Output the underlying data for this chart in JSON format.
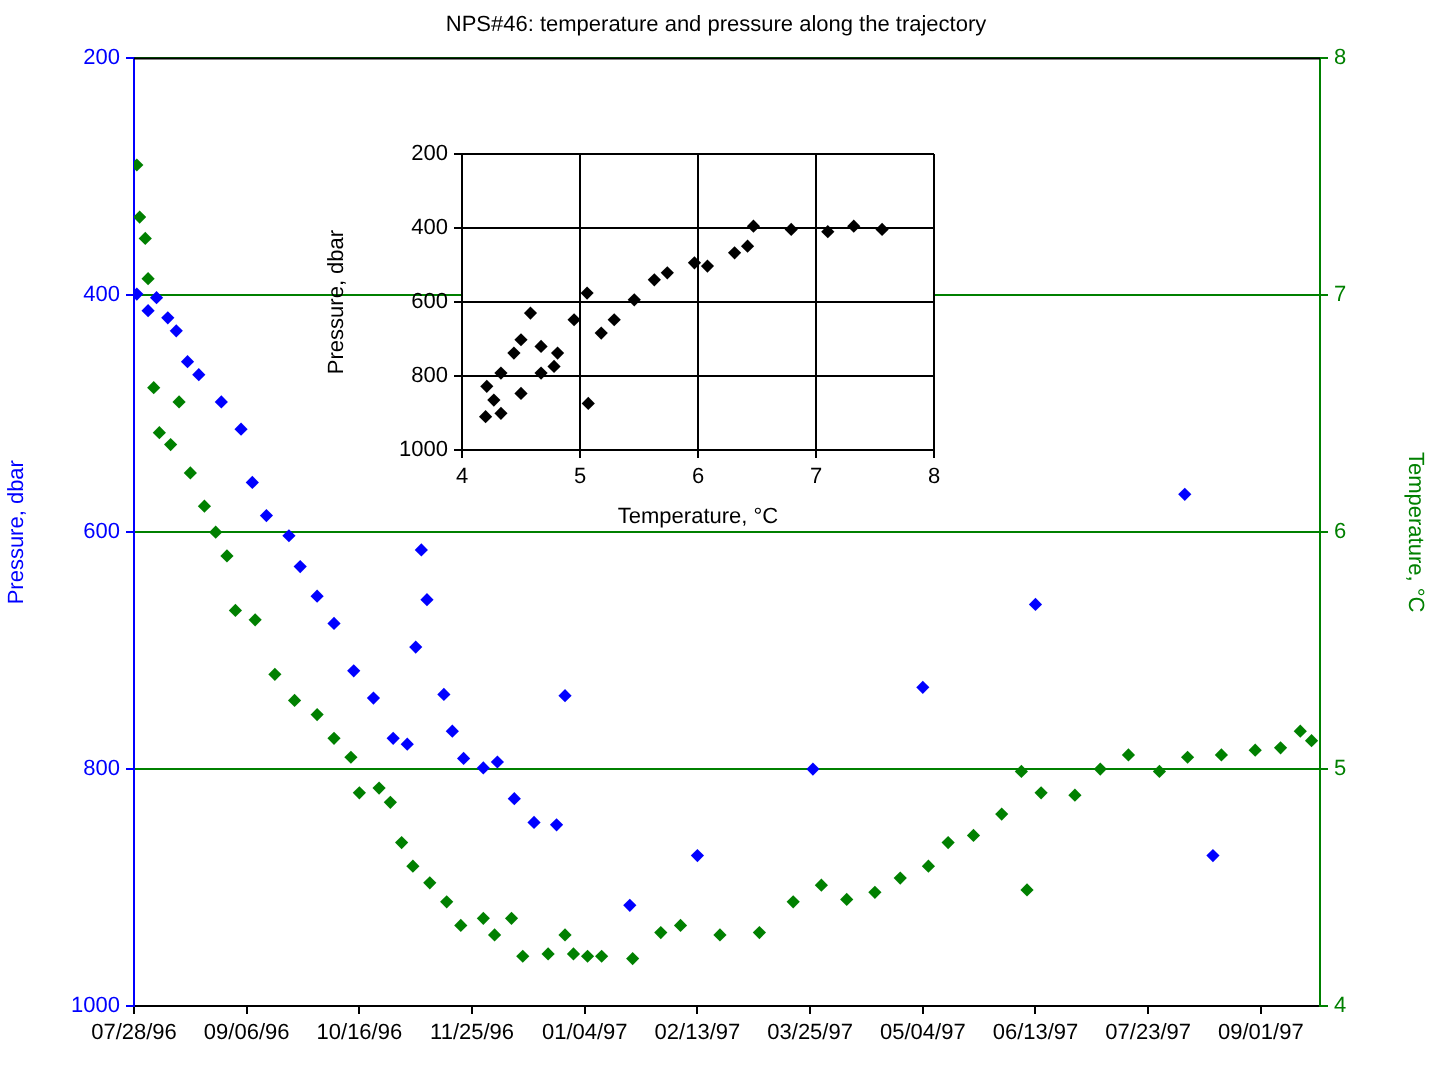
{
  "chart_data": [
    {
      "type": "scatter",
      "title": "NPS#46: temperature and pressure along the trajectory",
      "ylabel": "Pressure, dbar",
      "y2label": "Temperature, °C",
      "xlim": [
        "1996-07-28",
        "1997-09-22"
      ],
      "xticks": [
        {
          "value": "1996-07-28",
          "label": "07/28/96"
        },
        {
          "value": "1996-09-06",
          "label": "09/06/96"
        },
        {
          "value": "1996-10-16",
          "label": "10/16/96"
        },
        {
          "value": "1996-11-25",
          "label": "11/25/96"
        },
        {
          "value": "1997-01-04",
          "label": "01/04/97"
        },
        {
          "value": "1997-02-13",
          "label": "02/13/97"
        },
        {
          "value": "1997-03-25",
          "label": "03/25/97"
        },
        {
          "value": "1997-05-04",
          "label": "05/04/97"
        },
        {
          "value": "1997-06-13",
          "label": "06/13/97"
        },
        {
          "value": "1997-07-23",
          "label": "07/23/97"
        },
        {
          "value": "1997-09-01",
          "label": "09/01/97"
        }
      ],
      "ylim": [
        1000,
        200
      ],
      "yticks": [
        200,
        400,
        600,
        800,
        1000
      ],
      "y2lim": [
        4,
        8
      ],
      "y2ticks": [
        4,
        5,
        6,
        7,
        8
      ],
      "grid": "y",
      "legend": false,
      "marker": "diamond",
      "series": [
        {
          "color": "#0000ff",
          "axis": "y",
          "x": [
            "1996-07-29",
            "1996-08-02",
            "1996-08-05",
            "1996-08-09",
            "1996-08-12",
            "1996-08-16",
            "1996-08-20",
            "1996-08-28",
            "1996-09-04",
            "1996-09-08",
            "1996-09-13",
            "1996-09-21",
            "1996-09-25",
            "1996-10-01",
            "1996-10-07",
            "1996-10-14",
            "1996-10-21",
            "1996-10-28",
            "1996-11-02",
            "1996-11-05",
            "1996-11-07",
            "1996-11-09",
            "1996-11-15",
            "1996-11-18",
            "1996-11-22",
            "1996-11-29",
            "1996-12-04",
            "1996-12-10",
            "1996-12-17",
            "1996-12-25",
            "1996-12-28",
            "1997-01-20",
            "1997-02-13",
            "1997-03-26",
            "1997-05-04",
            "1997-06-13",
            "1997-08-05",
            "1997-08-15"
          ],
          "values": [
            399,
            413,
            402,
            419,
            430,
            456,
            467,
            490,
            513,
            558,
            586,
            603,
            629,
            654,
            677,
            717,
            740,
            774,
            779,
            697,
            615,
            657,
            737,
            768,
            791,
            799,
            794,
            825,
            845,
            847,
            738,
            915,
            873,
            800,
            731,
            661,
            568,
            873
          ]
        },
        {
          "color": "#008000",
          "axis": "y2",
          "x": [
            "1996-07-29",
            "1996-07-30",
            "1996-08-01",
            "1996-08-02",
            "1996-08-04",
            "1996-08-06",
            "1996-08-10",
            "1996-08-13",
            "1996-08-17",
            "1996-08-22",
            "1996-08-26",
            "1996-08-30",
            "1996-09-02",
            "1996-09-09",
            "1996-09-16",
            "1996-09-23",
            "1996-10-01",
            "1996-10-07",
            "1996-10-13",
            "1996-10-16",
            "1996-10-23",
            "1996-10-27",
            "1996-10-31",
            "1996-11-04",
            "1996-11-10",
            "1996-11-16",
            "1996-11-21",
            "1996-11-29",
            "1996-12-03",
            "1996-12-09",
            "1996-12-13",
            "1996-12-22",
            "1996-12-28",
            "1996-12-31",
            "1997-01-05",
            "1997-01-10",
            "1997-01-21",
            "1997-01-31",
            "1997-02-07",
            "1997-02-21",
            "1997-03-07",
            "1997-03-19",
            "1997-03-29",
            "1997-04-07",
            "1997-04-17",
            "1997-04-26",
            "1997-05-06",
            "1997-05-13",
            "1997-05-22",
            "1997-06-01",
            "1997-06-08",
            "1997-06-10",
            "1997-06-15",
            "1997-06-27",
            "1997-07-06",
            "1997-07-16",
            "1997-07-27",
            "1997-08-06",
            "1997-08-18",
            "1997-08-30",
            "1997-09-08",
            "1997-09-15",
            "1997-09-19"
          ],
          "values": [
            7.55,
            7.33,
            7.24,
            7.07,
            6.61,
            6.42,
            6.37,
            6.55,
            6.25,
            6.11,
            6.0,
            5.9,
            5.67,
            5.63,
            5.4,
            5.29,
            5.23,
            5.13,
            5.05,
            4.9,
            4.92,
            4.86,
            4.69,
            4.59,
            4.52,
            4.44,
            4.34,
            4.37,
            4.3,
            4.37,
            4.21,
            4.22,
            4.3,
            4.22,
            4.21,
            4.21,
            4.2,
            4.31,
            4.34,
            4.3,
            4.31,
            4.44,
            4.51,
            4.45,
            4.48,
            4.54,
            4.59,
            4.69,
            4.72,
            4.81,
            4.99,
            4.49,
            4.9,
            4.89,
            5.0,
            5.06,
            4.99,
            5.05,
            5.06,
            5.08,
            5.09,
            5.16,
            5.12
          ]
        }
      ]
    },
    {
      "type": "scatter",
      "xlabel": "Temperature, °C",
      "ylabel": "Pressure, dbar",
      "xlim": [
        4,
        8
      ],
      "xticks": [
        4,
        5,
        6,
        7,
        8
      ],
      "ylim": [
        1000,
        200
      ],
      "yticks": [
        200,
        400,
        600,
        800,
        1000
      ],
      "grid": true,
      "legend": false,
      "marker": "diamond",
      "series": [
        {
          "color": "#000000",
          "x": [
            7.56,
            7.32,
            7.1,
            6.79,
            6.47,
            6.31,
            5.97,
            5.63,
            5.46,
            5.29,
            5.18,
            5.06,
            4.95,
            4.81,
            4.67,
            4.5,
            4.33,
            4.2,
            4.21,
            4.44,
            4.58,
            4.78,
            5.07,
            6.42,
            6.08,
            5.74,
            4.33,
            4.5,
            4.67,
            4.27
          ],
          "values": [
            404,
            395,
            410,
            404,
            395,
            467,
            494,
            540,
            594,
            648,
            684,
            576,
            648,
            738,
            792,
            847,
            901,
            910,
            828,
            738,
            630,
            774,
            874,
            449,
            503,
            521,
            792,
            702,
            720,
            865
          ]
        }
      ]
    }
  ]
}
